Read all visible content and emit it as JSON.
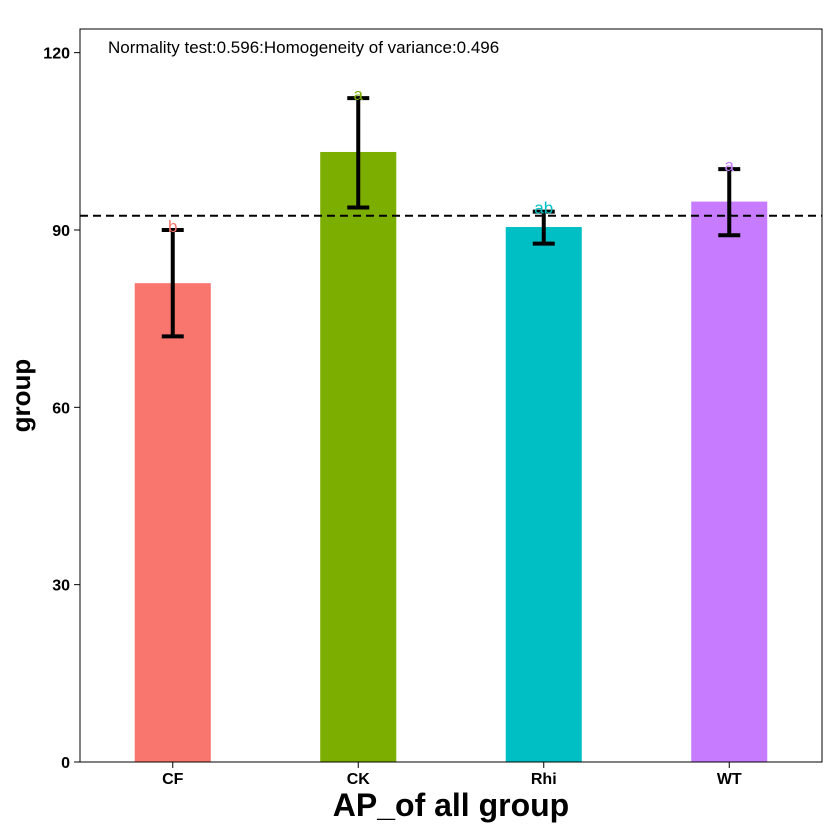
{
  "chart_data": {
    "type": "bar",
    "categories": [
      "CF",
      "CK",
      "Rhi",
      "WT"
    ],
    "values": [
      81,
      103.2,
      90.5,
      94.8
    ],
    "error_low": [
      72,
      93.8,
      87.7,
      89.1
    ],
    "error_high": [
      90,
      112.3,
      93.1,
      100.3
    ],
    "colors": [
      "#F8766D",
      "#7CAE00",
      "#00BFC4",
      "#C77CFF"
    ],
    "significance_labels": [
      "b",
      "a",
      "ab",
      "a"
    ],
    "reference_line": 92.4,
    "annotation": "Normality test:0.596:Homogeneity of variance:0.496",
    "xlabel": "AP_of all group",
    "ylabel": "group",
    "ylim": [
      0,
      124
    ],
    "yticks": [
      0,
      30,
      60,
      90,
      120
    ],
    "grid": false,
    "legend": "none"
  }
}
